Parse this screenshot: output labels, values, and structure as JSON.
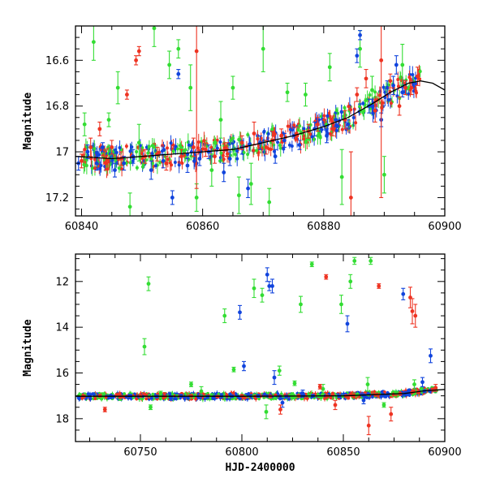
{
  "chart_data": [
    {
      "type": "scatter",
      "panel": "top",
      "xlabel": "",
      "ylabel": "Magnitude",
      "xlim": [
        60839,
        60900
      ],
      "ylim": [
        17.28,
        16.45
      ],
      "y_inverted": true,
      "xticks": [
        60840,
        60860,
        60880,
        60900
      ],
      "yticks": [
        16.6,
        16.8,
        17,
        17.2
      ],
      "grid": false,
      "legend": "none",
      "colors": {
        "g": "#33dd33",
        "b": "#1144dd",
        "r": "#ee3322",
        "model": "#000000"
      },
      "model_curve": {
        "x": [
          60839,
          60845,
          60850,
          60855,
          60860,
          60865,
          60870,
          60875,
          60880,
          60884,
          60888,
          60891,
          60894,
          60896,
          60898,
          60900
        ],
        "y": [
          17.02,
          17.03,
          17.02,
          17.01,
          17.0,
          16.99,
          16.96,
          16.93,
          16.89,
          16.85,
          16.79,
          16.74,
          16.7,
          16.69,
          16.7,
          16.73
        ]
      },
      "series": [
        {
          "name": "",
          "color": "#33dd33",
          "points": [
            [
              60840.5,
              16.88,
              0.05
            ],
            [
              60842.0,
              16.52,
              0.08
            ],
            [
              60844.5,
              16.86,
              0.03
            ],
            [
              60846.0,
              16.72,
              0.07
            ],
            [
              60848.0,
              17.24,
              0.06
            ],
            [
              60849.5,
              16.96,
              0.08
            ],
            [
              60852.0,
              16.46,
              0.08
            ],
            [
              60854.5,
              16.62,
              0.06
            ],
            [
              60856.0,
              16.55,
              0.04
            ],
            [
              60858.0,
              16.72,
              0.1
            ],
            [
              60859.0,
              17.2,
              0.06
            ],
            [
              60861.5,
              17.08,
              0.07
            ],
            [
              60863.0,
              16.86,
              0.08
            ],
            [
              60865.0,
              16.72,
              0.05
            ],
            [
              60866.0,
              17.19,
              0.08
            ],
            [
              60868.0,
              17.14,
              0.09
            ],
            [
              60870.0,
              16.55,
              0.1
            ],
            [
              60871.0,
              17.22,
              0.06
            ],
            [
              60874.0,
              16.74,
              0.04
            ],
            [
              60877.0,
              16.75,
              0.05
            ],
            [
              60881.0,
              16.63,
              0.06
            ],
            [
              60883.0,
              17.11,
              0.12
            ],
            [
              60886.0,
              16.55,
              0.08
            ],
            [
              60888.0,
              16.73,
              0.06
            ],
            [
              60890.0,
              17.1,
              0.08
            ],
            [
              60893.0,
              16.62,
              0.09
            ]
          ]
        },
        {
          "name": "",
          "color": "#1144dd",
          "points": [
            [
              60839.5,
              17.05,
              0.03
            ],
            [
              60841.0,
              17.0,
              0.03
            ],
            [
              60842.5,
              17.05,
              0.03
            ],
            [
              60843.5,
              16.98,
              0.02
            ],
            [
              60845.5,
              17.08,
              0.03
            ],
            [
              60847.0,
              17.05,
              0.03
            ],
            [
              60848.5,
              17.02,
              0.03
            ],
            [
              60851.5,
              17.08,
              0.04
            ],
            [
              60853.5,
              17.04,
              0.03
            ],
            [
              60855.0,
              17.2,
              0.03
            ],
            [
              60856.0,
              16.66,
              0.02
            ],
            [
              60857.5,
              17.06,
              0.03
            ],
            [
              60859.5,
              17.03,
              0.03
            ],
            [
              60861.0,
              17.0,
              0.03
            ],
            [
              60863.5,
              17.09,
              0.04
            ],
            [
              60864.5,
              17.03,
              0.03
            ],
            [
              60866.5,
              16.98,
              0.03
            ],
            [
              60867.5,
              17.16,
              0.04
            ],
            [
              60869.5,
              16.96,
              0.03
            ],
            [
              60872.0,
              17.02,
              0.03
            ],
            [
              60873.5,
              16.95,
              0.03
            ],
            [
              60876.0,
              16.97,
              0.02
            ],
            [
              60878.5,
              16.9,
              0.03
            ],
            [
              60880.5,
              16.93,
              0.03
            ],
            [
              60882.0,
              16.86,
              0.03
            ],
            [
              60884.0,
              16.88,
              0.02
            ],
            [
              60885.5,
              16.58,
              0.03
            ],
            [
              60886.0,
              16.49,
              0.02
            ],
            [
              60887.5,
              16.8,
              0.03
            ],
            [
              60888.0,
              16.8,
              0.03
            ],
            [
              60889.5,
              16.86,
              0.03
            ],
            [
              60890.5,
              16.72,
              0.03
            ],
            [
              60891.5,
              16.71,
              0.04
            ],
            [
              60892.0,
              16.62,
              0.04
            ],
            [
              60893.0,
              16.74,
              0.02
            ]
          ]
        },
        {
          "name": "",
          "color": "#ee3322",
          "points": [
            [
              60840.0,
              17.04,
              0.03
            ],
            [
              60841.5,
              16.98,
              0.04
            ],
            [
              60843.0,
              16.9,
              0.03
            ],
            [
              60844.0,
              17.05,
              0.03
            ],
            [
              60845.0,
              16.98,
              0.03
            ],
            [
              60846.5,
              17.03,
              0.03
            ],
            [
              60847.5,
              16.75,
              0.02
            ],
            [
              60849.0,
              16.6,
              0.02
            ],
            [
              60849.5,
              16.56,
              0.02
            ],
            [
              60850.5,
              17.02,
              0.03
            ],
            [
              60852.5,
              17.01,
              0.03
            ],
            [
              60854.0,
              17.05,
              0.03
            ],
            [
              60856.5,
              17.02,
              0.03
            ],
            [
              60858.5,
              16.98,
              0.04
            ],
            [
              60859.0,
              16.56,
              0.6
            ],
            [
              60860.5,
              16.99,
              0.03
            ],
            [
              60862.0,
              17.02,
              0.03
            ],
            [
              60864.0,
              16.99,
              0.03
            ],
            [
              60866.5,
              16.96,
              0.03
            ],
            [
              60868.5,
              16.92,
              0.05
            ],
            [
              60870.5,
              16.98,
              0.03
            ],
            [
              60871.5,
              16.95,
              0.04
            ],
            [
              60873.0,
              16.93,
              0.03
            ],
            [
              60875.5,
              16.92,
              0.03
            ],
            [
              60877.5,
              16.91,
              0.03
            ],
            [
              60879.0,
              16.88,
              0.03
            ],
            [
              60881.5,
              16.9,
              0.03
            ],
            [
              60883.5,
              16.86,
              0.04
            ],
            [
              60884.5,
              17.2,
              0.2
            ],
            [
              60885.5,
              16.75,
              0.03
            ],
            [
              60887.0,
              16.68,
              0.04
            ],
            [
              60888.5,
              16.82,
              0.05
            ],
            [
              60889.5,
              16.6,
              0.6
            ],
            [
              60891.0,
              16.69,
              0.03
            ],
            [
              60892.5,
              16.8,
              0.04
            ],
            [
              60893.5,
              16.72,
              0.03
            ],
            [
              60894.5,
              16.72,
              0.03
            ],
            [
              60895.5,
              16.67,
              0.04
            ]
          ]
        }
      ]
    },
    {
      "type": "scatter",
      "panel": "bottom",
      "xlabel": "HJD-2400000",
      "ylabel": "Magnitude",
      "xlim": [
        60718,
        60900
      ],
      "ylim": [
        19.0,
        10.8
      ],
      "y_inverted": true,
      "xticks": [
        60750,
        60800,
        60850,
        60900
      ],
      "yticks": [
        12,
        14,
        16,
        18
      ],
      "grid": false,
      "legend": "none",
      "colors": {
        "g": "#33dd33",
        "b": "#1144dd",
        "r": "#ee3322",
        "model": "#000000"
      },
      "model_curve": {
        "x": [
          60718,
          60750,
          60800,
          60850,
          60880,
          60890,
          60900
        ],
        "y": [
          17.02,
          17.02,
          17.02,
          17.0,
          16.9,
          16.78,
          16.72
        ]
      },
      "series": [
        {
          "name": "",
          "color": "#33dd33",
          "points": [
            [
              60752.0,
              14.85,
              0.35
            ],
            [
              60754.0,
              12.1,
              0.3
            ],
            [
              60755.0,
              17.5,
              0.1
            ],
            [
              60791.5,
              13.5,
              0.3
            ],
            [
              60796.0,
              15.85,
              0.1
            ],
            [
              60806.0,
              12.3,
              0.4
            ],
            [
              60810.0,
              12.6,
              0.3
            ],
            [
              60818.5,
              15.9,
              0.2
            ],
            [
              60826.0,
              16.45,
              0.1
            ],
            [
              60829.0,
              13.0,
              0.35
            ],
            [
              60834.5,
              11.25,
              0.1
            ],
            [
              60849.0,
              13.0,
              0.4
            ],
            [
              60853.5,
              12.0,
              0.3
            ],
            [
              60855.5,
              11.1,
              0.15
            ],
            [
              60863.5,
              11.1,
              0.15
            ],
            [
              60870.0,
              17.4,
              0.1
            ],
            [
              60740.0,
              17.1,
              0.1
            ],
            [
              60760.0,
              16.9,
              0.1
            ],
            [
              60775.0,
              16.5,
              0.1
            ],
            [
              60780.0,
              16.8,
              0.2
            ],
            [
              60812.0,
              17.7,
              0.3
            ],
            [
              60840.0,
              16.7,
              0.2
            ],
            [
              60862.0,
              16.5,
              0.3
            ],
            [
              60885.0,
              16.5,
              0.2
            ]
          ]
        },
        {
          "name": "",
          "color": "#1144dd",
          "points": [
            [
              60799.0,
              13.35,
              0.3
            ],
            [
              60801.0,
              15.7,
              0.2
            ],
            [
              60812.5,
              11.7,
              0.3
            ],
            [
              60813.5,
              12.2,
              0.2
            ],
            [
              60815.0,
              12.2,
              0.3
            ],
            [
              60816.0,
              16.2,
              0.3
            ],
            [
              60820.0,
              17.3,
              0.2
            ],
            [
              60852.0,
              13.85,
              0.35
            ],
            [
              60879.5,
              12.55,
              0.25
            ],
            [
              60893.0,
              15.25,
              0.3
            ],
            [
              60765.0,
              17.1,
              0.1
            ],
            [
              60790.0,
              17.0,
              0.1
            ],
            [
              60830.0,
              16.9,
              0.15
            ],
            [
              60860.0,
              17.2,
              0.15
            ],
            [
              60889.0,
              16.4,
              0.2
            ]
          ]
        },
        {
          "name": "",
          "color": "#ee3322",
          "points": [
            [
              60841.5,
              11.8,
              0.1
            ],
            [
              60867.5,
              12.2,
              0.1
            ],
            [
              60883.0,
              12.7,
              0.45
            ],
            [
              60884.0,
              13.3,
              0.55
            ],
            [
              60885.5,
              13.5,
              0.5
            ],
            [
              60862.5,
              18.3,
              0.4
            ],
            [
              60732.5,
              17.6,
              0.1
            ],
            [
              60838.5,
              16.6,
              0.1
            ],
            [
              60819.0,
              17.6,
              0.2
            ],
            [
              60846.0,
              17.4,
              0.2
            ],
            [
              60873.5,
              17.8,
              0.3
            ],
            [
              60895.5,
              16.65,
              0.15
            ]
          ]
        },
        {
          "name": "",
          "color": "#1144dd",
          "baseline": true,
          "points": [
            [
              60725,
              17.0,
              0.06
            ],
            [
              60735,
              17.05,
              0.06
            ],
            [
              60745,
              17.0,
              0.06
            ],
            [
              60758,
              17.03,
              0.06
            ],
            [
              60770,
              17.0,
              0.06
            ],
            [
              60783,
              17.05,
              0.06
            ],
            [
              60795,
              17.02,
              0.06
            ],
            [
              60808,
              17.0,
              0.06
            ],
            [
              60822,
              17.04,
              0.06
            ],
            [
              60835,
              17.0,
              0.06
            ],
            [
              60848,
              17.02,
              0.06
            ],
            [
              60860,
              16.98,
              0.06
            ],
            [
              60872,
              16.95,
              0.06
            ],
            [
              60882,
              16.9,
              0.06
            ],
            [
              60890,
              16.8,
              0.06
            ]
          ]
        },
        {
          "name": "",
          "color": "#ee3322",
          "baseline": true,
          "points": [
            [
              60722,
              17.02,
              0.05
            ],
            [
              60730,
              17.0,
              0.05
            ],
            [
              60740,
              17.05,
              0.05
            ],
            [
              60750,
              17.0,
              0.05
            ],
            [
              60762,
              17.03,
              0.05
            ],
            [
              60775,
              17.0,
              0.05
            ],
            [
              60788,
              17.04,
              0.05
            ],
            [
              60800,
              17.0,
              0.05
            ],
            [
              60814,
              17.03,
              0.05
            ],
            [
              60828,
              17.0,
              0.05
            ],
            [
              60842,
              17.02,
              0.05
            ],
            [
              60855,
              16.99,
              0.05
            ],
            [
              60866,
              16.96,
              0.05
            ],
            [
              60878,
              16.92,
              0.05
            ],
            [
              60887,
              16.85,
              0.05
            ],
            [
              60894,
              16.72,
              0.05
            ]
          ]
        }
      ]
    }
  ]
}
